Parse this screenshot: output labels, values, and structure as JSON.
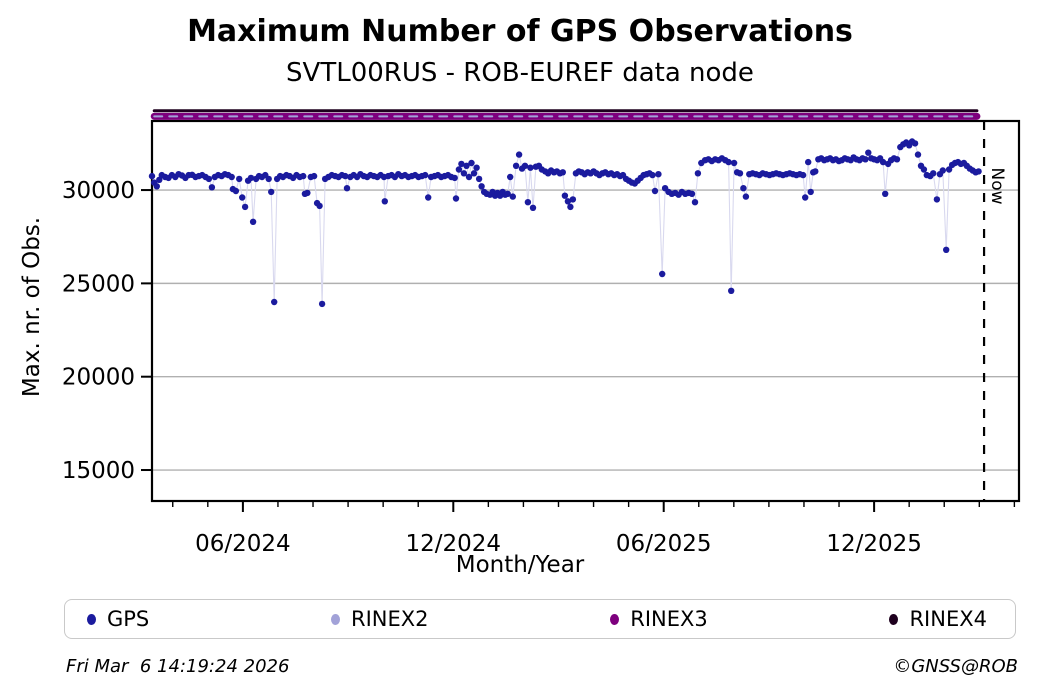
{
  "title": "Maximum Number of GPS Observations",
  "subtitle": "SVTL00RUS - ROB-EUREF data node",
  "footer": {
    "timestamp": "Fri Mar  6 14:19:24 2026",
    "credit": "©GNSS@ROB"
  },
  "legend": {
    "items": [
      {
        "label": "GPS",
        "color": "#1b1b9e"
      },
      {
        "label": "RINEX2",
        "color": "#a2a2d8"
      },
      {
        "label": "RINEX3",
        "color": "#7d007d"
      },
      {
        "label": "RINEX4",
        "color": "#1e001e"
      }
    ]
  },
  "chart_data": {
    "type": "scatter",
    "title": "Maximum Number of GPS Observations",
    "subtitle": "SVTL00RUS - ROB-EUREF data node",
    "xlabel": "Month/Year",
    "ylabel": "Max. nr. of Obs.",
    "x_range": [
      2024.2007,
      2026.261
    ],
    "y_range": [
      13340,
      33700
    ],
    "y_ticks": [
      15000,
      20000,
      25000,
      30000
    ],
    "x_ticks": [
      {
        "v": 2024.4167,
        "label": "06/2024"
      },
      {
        "v": 2024.9167,
        "label": "12/2024"
      },
      {
        "v": 2025.4167,
        "label": "06/2025"
      },
      {
        "v": 2025.9167,
        "label": "12/2025"
      }
    ],
    "x_minor_step_months": 1,
    "grid": "y-major",
    "grid_color": "#b0b0b0",
    "now": {
      "v": 2026.178,
      "label": "Now"
    },
    "series": [
      {
        "name": "RINEX4",
        "type": "hline",
        "value": 34250,
        "x_start": 2024.206,
        "x_end": 2026.161,
        "color": "#1e001e",
        "width": 3
      },
      {
        "name": "RINEX3",
        "type": "hline",
        "value": 33950,
        "x_start": 2024.206,
        "x_end": 2026.161,
        "color": "#7d007d",
        "width": 7
      },
      {
        "name": "RINEX2",
        "type": "hline-dashed",
        "value": 33950,
        "x_start": 2024.206,
        "x_end": 2026.161,
        "color": "#a2a2d8",
        "width": 2,
        "dash": "8 7"
      },
      {
        "name": "GPS",
        "type": "scatter-line",
        "color": "#1b1b9e",
        "marker_r": 3.2,
        "line_color": "#d9d9ef",
        "points": [
          [
            2024.2007,
            30750
          ],
          [
            2024.206,
            30400
          ],
          [
            2024.212,
            30200
          ],
          [
            2024.218,
            30550
          ],
          [
            2024.224,
            30800
          ],
          [
            2024.232,
            30700
          ],
          [
            2024.24,
            30650
          ],
          [
            2024.248,
            30800
          ],
          [
            2024.256,
            30700
          ],
          [
            2024.264,
            30850
          ],
          [
            2024.272,
            30780
          ],
          [
            2024.28,
            30650
          ],
          [
            2024.288,
            30800
          ],
          [
            2024.296,
            30820
          ],
          [
            2024.304,
            30700
          ],
          [
            2024.312,
            30750
          ],
          [
            2024.32,
            30800
          ],
          [
            2024.328,
            30700
          ],
          [
            2024.336,
            30600
          ],
          [
            2024.343,
            30150
          ],
          [
            2024.35,
            30700
          ],
          [
            2024.358,
            30800
          ],
          [
            2024.366,
            30750
          ],
          [
            2024.374,
            30850
          ],
          [
            2024.382,
            30800
          ],
          [
            2024.39,
            30700
          ],
          [
            2024.393,
            30050
          ],
          [
            2024.4,
            29950
          ],
          [
            2024.408,
            30600
          ],
          [
            2024.415,
            29600
          ],
          [
            2024.422,
            29100
          ],
          [
            2024.429,
            30500
          ],
          [
            2024.436,
            30650
          ],
          [
            2024.441,
            28300
          ],
          [
            2024.448,
            30600
          ],
          [
            2024.455,
            30750
          ],
          [
            2024.462,
            30700
          ],
          [
            2024.47,
            30800
          ],
          [
            2024.478,
            30600
          ],
          [
            2024.484,
            29900
          ],
          [
            2024.491,
            24000
          ],
          [
            2024.498,
            30600
          ],
          [
            2024.505,
            30750
          ],
          [
            2024.512,
            30700
          ],
          [
            2024.52,
            30800
          ],
          [
            2024.528,
            30750
          ],
          [
            2024.536,
            30650
          ],
          [
            2024.544,
            30800
          ],
          [
            2024.552,
            30700
          ],
          [
            2024.56,
            30750
          ],
          [
            2024.564,
            29800
          ],
          [
            2024.57,
            29850
          ],
          [
            2024.578,
            30700
          ],
          [
            2024.586,
            30750
          ],
          [
            2024.593,
            29300
          ],
          [
            2024.599,
            29150
          ],
          [
            2024.605,
            23900
          ],
          [
            2024.612,
            30600
          ],
          [
            2024.62,
            30700
          ],
          [
            2024.628,
            30800
          ],
          [
            2024.636,
            30750
          ],
          [
            2024.644,
            30700
          ],
          [
            2024.652,
            30800
          ],
          [
            2024.66,
            30750
          ],
          [
            2024.664,
            30100
          ],
          [
            2024.672,
            30700
          ],
          [
            2024.68,
            30800
          ],
          [
            2024.688,
            30700
          ],
          [
            2024.696,
            30850
          ],
          [
            2024.704,
            30750
          ],
          [
            2024.712,
            30700
          ],
          [
            2024.72,
            30800
          ],
          [
            2024.728,
            30750
          ],
          [
            2024.736,
            30700
          ],
          [
            2024.744,
            30800
          ],
          [
            2024.752,
            30700
          ],
          [
            2024.754,
            29400
          ],
          [
            2024.762,
            30750
          ],
          [
            2024.77,
            30800
          ],
          [
            2024.778,
            30700
          ],
          [
            2024.786,
            30850
          ],
          [
            2024.794,
            30750
          ],
          [
            2024.802,
            30800
          ],
          [
            2024.81,
            30700
          ],
          [
            2024.818,
            30750
          ],
          [
            2024.826,
            30800
          ],
          [
            2024.834,
            30700
          ],
          [
            2024.842,
            30750
          ],
          [
            2024.85,
            30800
          ],
          [
            2024.857,
            29600
          ],
          [
            2024.864,
            30700
          ],
          [
            2024.872,
            30750
          ],
          [
            2024.88,
            30800
          ],
          [
            2024.888,
            30700
          ],
          [
            2024.896,
            30750
          ],
          [
            2024.904,
            30800
          ],
          [
            2024.912,
            30700
          ],
          [
            2024.92,
            30650
          ],
          [
            2024.923,
            29550
          ],
          [
            2024.93,
            31100
          ],
          [
            2024.936,
            31400
          ],
          [
            2024.942,
            30900
          ],
          [
            2024.948,
            31300
          ],
          [
            2024.954,
            30700
          ],
          [
            2024.96,
            31450
          ],
          [
            2024.966,
            30900
          ],
          [
            2024.972,
            31200
          ],
          [
            2024.978,
            30600
          ],
          [
            2024.984,
            30200
          ],
          [
            2024.99,
            29900
          ],
          [
            2024.996,
            29800
          ],
          [
            2025.004,
            29750
          ],
          [
            2025.01,
            29900
          ],
          [
            2025.016,
            29700
          ],
          [
            2025.022,
            29850
          ],
          [
            2025.028,
            29700
          ],
          [
            2025.034,
            29900
          ],
          [
            2025.04,
            29750
          ],
          [
            2025.046,
            29800
          ],
          [
            2025.052,
            30700
          ],
          [
            2025.058,
            29650
          ],
          [
            2025.066,
            31300
          ],
          [
            2025.073,
            31900
          ],
          [
            2025.08,
            31150
          ],
          [
            2025.087,
            31300
          ],
          [
            2025.094,
            29350
          ],
          [
            2025.1,
            31200
          ],
          [
            2025.106,
            29050
          ],
          [
            2025.113,
            31250
          ],
          [
            2025.12,
            31300
          ],
          [
            2025.127,
            31100
          ],
          [
            2025.135,
            31000
          ],
          [
            2025.142,
            30900
          ],
          [
            2025.149,
            31050
          ],
          [
            2025.156,
            30950
          ],
          [
            2025.163,
            31000
          ],
          [
            2025.17,
            30900
          ],
          [
            2025.177,
            30950
          ],
          [
            2025.182,
            29700
          ],
          [
            2025.189,
            29400
          ],
          [
            2025.195,
            29100
          ],
          [
            2025.201,
            29500
          ],
          [
            2025.208,
            30900
          ],
          [
            2025.215,
            31000
          ],
          [
            2025.222,
            30950
          ],
          [
            2025.229,
            30850
          ],
          [
            2025.236,
            30950
          ],
          [
            2025.243,
            30900
          ],
          [
            2025.25,
            31000
          ],
          [
            2025.257,
            30900
          ],
          [
            2025.264,
            30800
          ],
          [
            2025.271,
            30900
          ],
          [
            2025.278,
            30950
          ],
          [
            2025.285,
            30850
          ],
          [
            2025.292,
            30900
          ],
          [
            2025.299,
            30800
          ],
          [
            2025.306,
            30850
          ],
          [
            2025.313,
            30750
          ],
          [
            2025.32,
            30800
          ],
          [
            2025.327,
            30600
          ],
          [
            2025.334,
            30500
          ],
          [
            2025.341,
            30400
          ],
          [
            2025.348,
            30350
          ],
          [
            2025.355,
            30500
          ],
          [
            2025.362,
            30650
          ],
          [
            2025.369,
            30800
          ],
          [
            2025.376,
            30850
          ],
          [
            2025.383,
            30900
          ],
          [
            2025.39,
            30800
          ],
          [
            2025.396,
            29950
          ],
          [
            2025.404,
            30850
          ],
          [
            2025.413,
            25500
          ],
          [
            2025.42,
            30100
          ],
          [
            2025.428,
            29900
          ],
          [
            2025.436,
            29800
          ],
          [
            2025.444,
            29850
          ],
          [
            2025.452,
            29750
          ],
          [
            2025.46,
            29900
          ],
          [
            2025.468,
            29800
          ],
          [
            2025.476,
            29850
          ],
          [
            2025.484,
            29800
          ],
          [
            2025.491,
            29350
          ],
          [
            2025.498,
            30900
          ],
          [
            2025.506,
            31450
          ],
          [
            2025.515,
            31600
          ],
          [
            2025.523,
            31650
          ],
          [
            2025.531,
            31550
          ],
          [
            2025.539,
            31650
          ],
          [
            2025.547,
            31600
          ],
          [
            2025.555,
            31700
          ],
          [
            2025.563,
            31600
          ],
          [
            2025.571,
            31500
          ],
          [
            2025.577,
            24600
          ],
          [
            2025.584,
            31450
          ],
          [
            2025.591,
            30950
          ],
          [
            2025.598,
            30900
          ],
          [
            2025.606,
            30100
          ],
          [
            2025.612,
            29650
          ],
          [
            2025.62,
            30850
          ],
          [
            2025.628,
            30900
          ],
          [
            2025.636,
            30850
          ],
          [
            2025.644,
            30800
          ],
          [
            2025.652,
            30900
          ],
          [
            2025.66,
            30850
          ],
          [
            2025.668,
            30800
          ],
          [
            2025.676,
            30850
          ],
          [
            2025.684,
            30900
          ],
          [
            2025.692,
            30850
          ],
          [
            2025.7,
            30800
          ],
          [
            2025.708,
            30850
          ],
          [
            2025.716,
            30900
          ],
          [
            2025.724,
            30850
          ],
          [
            2025.732,
            30800
          ],
          [
            2025.74,
            30850
          ],
          [
            2025.748,
            30800
          ],
          [
            2025.753,
            29600
          ],
          [
            2025.76,
            31500
          ],
          [
            2025.766,
            29900
          ],
          [
            2025.772,
            30950
          ],
          [
            2025.777,
            31000
          ],
          [
            2025.784,
            31650
          ],
          [
            2025.791,
            31700
          ],
          [
            2025.798,
            31600
          ],
          [
            2025.805,
            31650
          ],
          [
            2025.812,
            31700
          ],
          [
            2025.819,
            31600
          ],
          [
            2025.826,
            31650
          ],
          [
            2025.833,
            31550
          ],
          [
            2025.84,
            31600
          ],
          [
            2025.847,
            31700
          ],
          [
            2025.854,
            31650
          ],
          [
            2025.861,
            31600
          ],
          [
            2025.868,
            31750
          ],
          [
            2025.875,
            31650
          ],
          [
            2025.882,
            31600
          ],
          [
            2025.889,
            31700
          ],
          [
            2025.896,
            31650
          ],
          [
            2025.903,
            32000
          ],
          [
            2025.91,
            31700
          ],
          [
            2025.917,
            31650
          ],
          [
            2025.924,
            31600
          ],
          [
            2025.931,
            31700
          ],
          [
            2025.938,
            31500
          ],
          [
            2025.943,
            29800
          ],
          [
            2025.95,
            31400
          ],
          [
            2025.957,
            31600
          ],
          [
            2025.964,
            31700
          ],
          [
            2025.971,
            31650
          ],
          [
            2025.979,
            32300
          ],
          [
            2025.986,
            32450
          ],
          [
            2025.993,
            32550
          ],
          [
            2026.0,
            32400
          ],
          [
            2026.007,
            32600
          ],
          [
            2026.014,
            32500
          ],
          [
            2026.021,
            31900
          ],
          [
            2026.028,
            31300
          ],
          [
            2026.035,
            31100
          ],
          [
            2026.042,
            30800
          ],
          [
            2026.05,
            30750
          ],
          [
            2026.057,
            30900
          ],
          [
            2026.066,
            29500
          ],
          [
            2026.073,
            30850
          ],
          [
            2026.08,
            31050
          ],
          [
            2026.088,
            26800
          ],
          [
            2026.095,
            31100
          ],
          [
            2026.102,
            31350
          ],
          [
            2026.109,
            31450
          ],
          [
            2026.116,
            31500
          ],
          [
            2026.123,
            31400
          ],
          [
            2026.13,
            31450
          ],
          [
            2026.137,
            31300
          ],
          [
            2026.144,
            31150
          ],
          [
            2026.151,
            31050
          ],
          [
            2026.158,
            30950
          ],
          [
            2026.165,
            31000
          ]
        ]
      }
    ]
  }
}
